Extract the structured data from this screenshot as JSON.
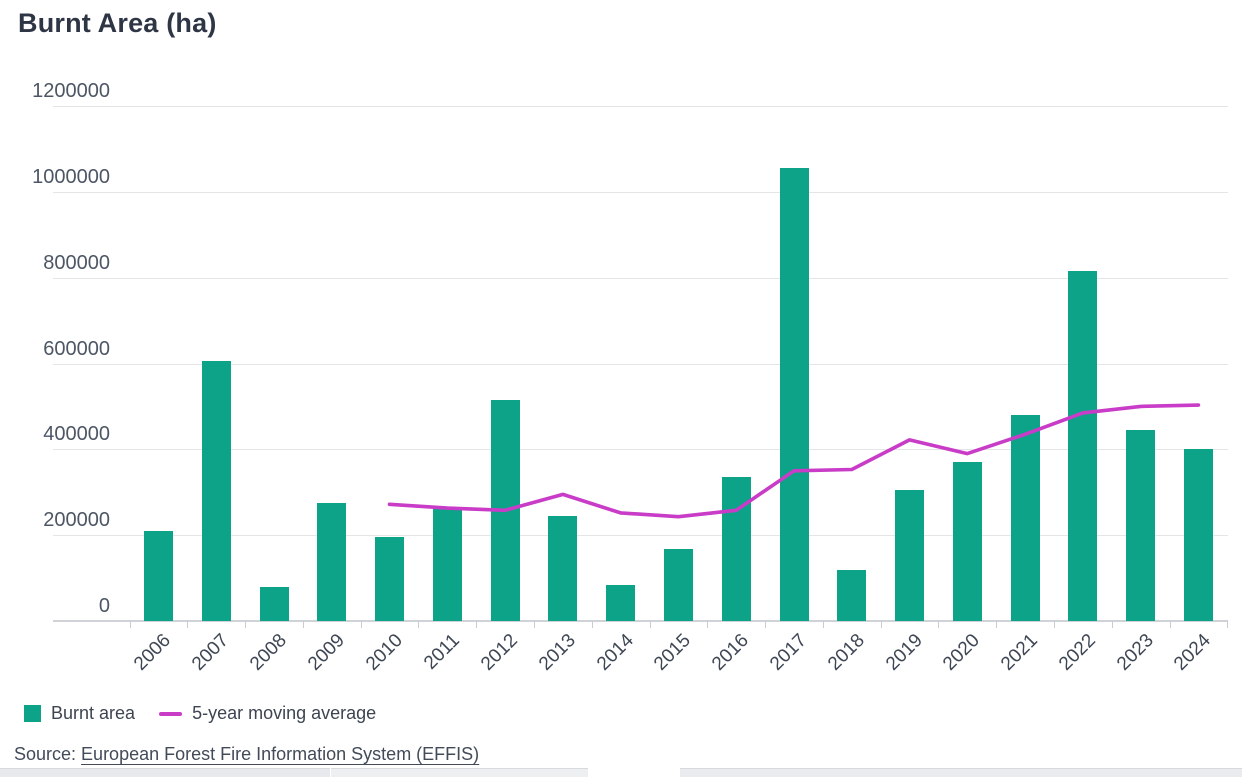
{
  "title": "Burnt Area (ha)",
  "legend": {
    "items": [
      {
        "label": "Burnt area",
        "swatch": "square",
        "color": "#0da389"
      },
      {
        "label": "5-year moving average",
        "swatch": "line",
        "color": "#c83cc8"
      }
    ]
  },
  "source": {
    "prefix": "Source: ",
    "link_text": "European Forest Fire Information System (EFFIS)"
  },
  "colors": {
    "bar": "#0da389",
    "moving_average_line": "#c83cc8",
    "title_text": "#2e3646",
    "axis_text": "#4d5664",
    "gridline": "#e4e5e7",
    "baseline": "#cfd3d8"
  },
  "chart_data": {
    "type": "bar",
    "title": "Burnt Area (ha)",
    "categories": [
      "2006",
      "2007",
      "2008",
      "2009",
      "2010",
      "2011",
      "2012",
      "2013",
      "2014",
      "2015",
      "2016",
      "2017",
      "2018",
      "2019",
      "2020",
      "2021",
      "2022",
      "2023",
      "2024"
    ],
    "series": [
      {
        "name": "Burnt area",
        "type": "bar",
        "values": [
          210000,
          605000,
          80000,
          275000,
          195000,
          260000,
          515000,
          245000,
          83000,
          167000,
          335000,
          1055000,
          118000,
          305000,
          370000,
          480000,
          815000,
          445000,
          400000
        ]
      },
      {
        "name": "5-year moving average",
        "type": "line",
        "values": [
          null,
          null,
          null,
          null,
          272000,
          263000,
          258000,
          295000,
          252000,
          243000,
          258000,
          350000,
          353000,
          422000,
          390000,
          435000,
          485000,
          500000,
          503000
        ]
      }
    ],
    "ylabel": "",
    "xlabel": "",
    "ylim": [
      0,
      1200000
    ],
    "yticks": [
      0,
      200000,
      400000,
      600000,
      800000,
      1000000,
      1200000
    ],
    "grid": true,
    "legend_position": "bottom-left"
  }
}
